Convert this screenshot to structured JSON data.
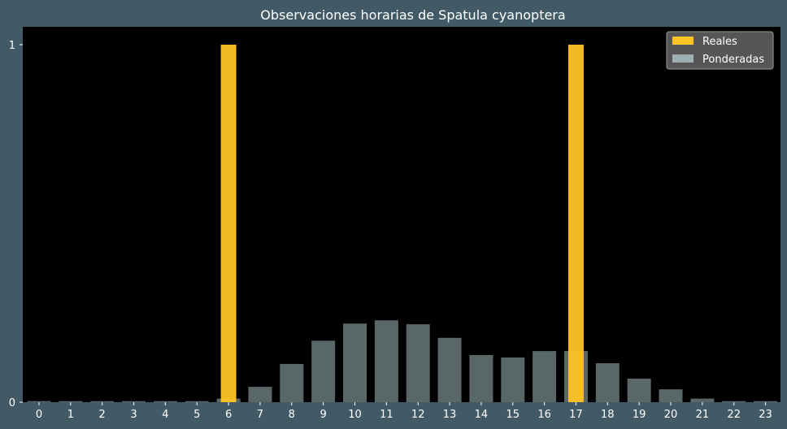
{
  "chart_data": {
    "type": "bar",
    "title": "Observaciones horarias de Spatula cyanoptera",
    "xlabel": "",
    "ylabel": "",
    "categories": [
      "0",
      "1",
      "2",
      "3",
      "4",
      "5",
      "6",
      "7",
      "8",
      "9",
      "10",
      "11",
      "12",
      "13",
      "14",
      "15",
      "16",
      "17",
      "18",
      "19",
      "20",
      "21",
      "22",
      "23"
    ],
    "series": [
      {
        "name": "Reales",
        "color": "#ffc425",
        "values": [
          0,
          0,
          0,
          0,
          0,
          0,
          1,
          0,
          0,
          0,
          0,
          0,
          0,
          0,
          0,
          0,
          0,
          1,
          0,
          0,
          0,
          0,
          0,
          0
        ]
      },
      {
        "name": "Ponderadas",
        "color": "#b4cdd2",
        "values": [
          0.003,
          0.003,
          0.003,
          0.003,
          0.003,
          0.003,
          0.01,
          0.043,
          0.107,
          0.172,
          0.22,
          0.229,
          0.218,
          0.18,
          0.132,
          0.125,
          0.143,
          0.143,
          0.109,
          0.066,
          0.036,
          0.01,
          0.003,
          0.003
        ]
      }
    ],
    "ylim": [
      0,
      1.05
    ],
    "yticks": [
      "0",
      "1"
    ],
    "grid": false,
    "legend_position": "top-right",
    "background": "#425a66",
    "plot_background": "#000000",
    "text_color": "#ffffff"
  }
}
